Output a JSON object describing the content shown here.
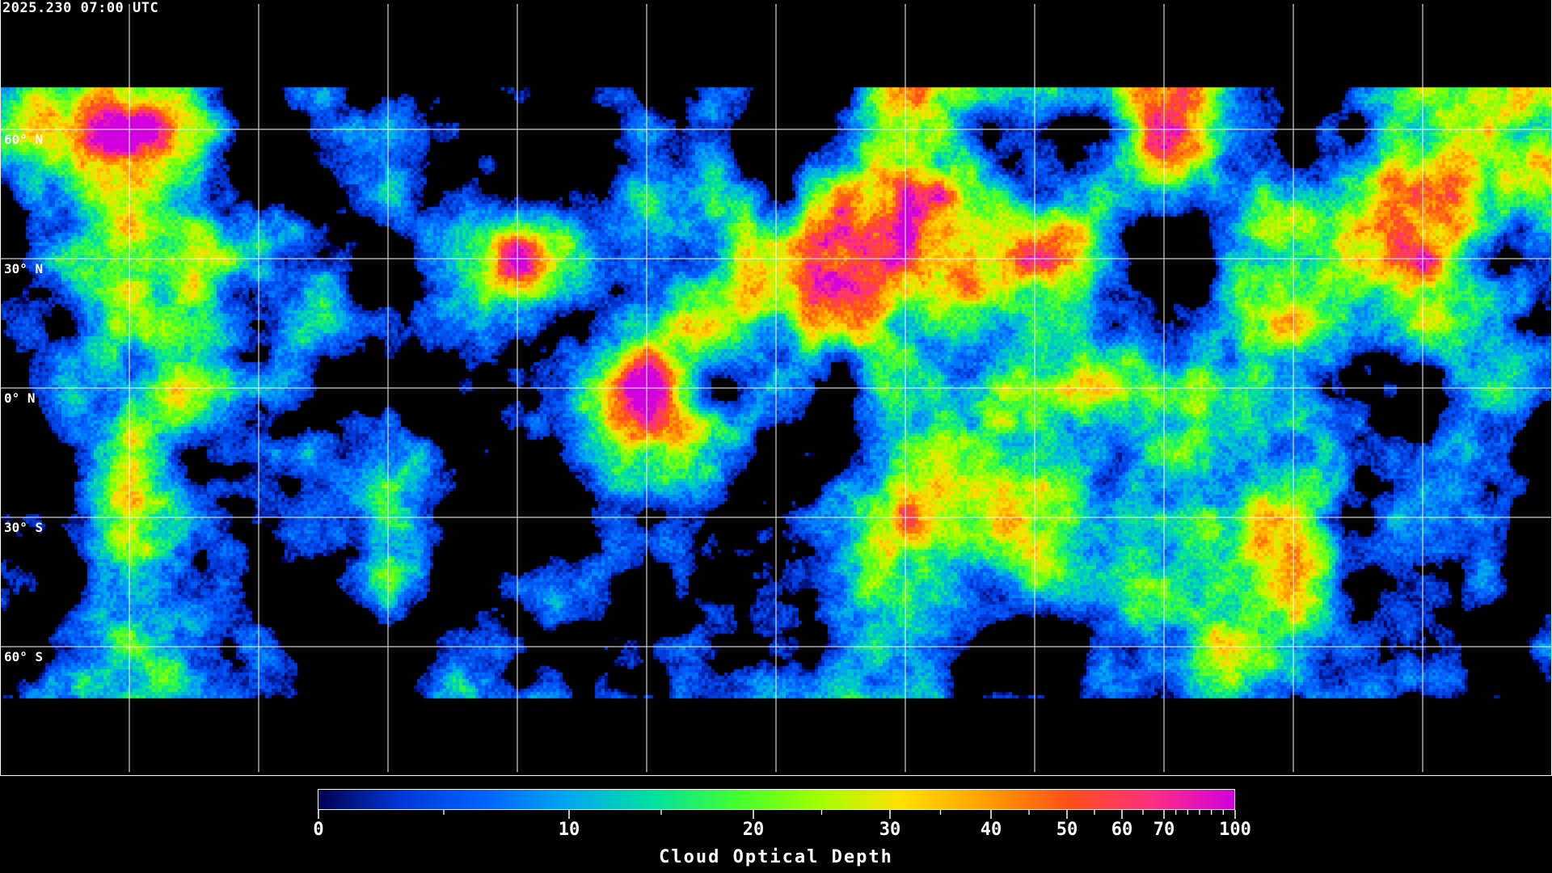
{
  "title": "2025.230 07:00 UTC",
  "map": {
    "projection": "equirectangular",
    "lat_labels": [
      "60° N",
      "30° N",
      "0° N",
      "30° S",
      "60° S"
    ],
    "gridline_lats": [
      60,
      30,
      0,
      -30,
      -60
    ],
    "gridline_lons": [
      -150,
      -120,
      -90,
      -60,
      -30,
      0,
      30,
      60,
      90,
      120,
      150
    ],
    "gridline_color": "#ffffff",
    "coastline_color": "#ffffff",
    "no_data_color": "#000000"
  },
  "colorbar": {
    "label": "Cloud Optical Depth",
    "range": [
      0,
      100
    ],
    "tick_labels": [
      "0",
      "10",
      "20",
      "30",
      "40",
      "50",
      "60",
      "70",
      "100"
    ],
    "minor_ticks": [
      5,
      15,
      25,
      35,
      45,
      55,
      65,
      75,
      80,
      85,
      90,
      95
    ],
    "colors": [
      "#000050",
      "#0038d8",
      "#0064ff",
      "#00a8f0",
      "#00e0a0",
      "#40ff30",
      "#a0ff00",
      "#ffe000",
      "#ffa000",
      "#ff5018",
      "#ff3080",
      "#d000e0"
    ]
  }
}
